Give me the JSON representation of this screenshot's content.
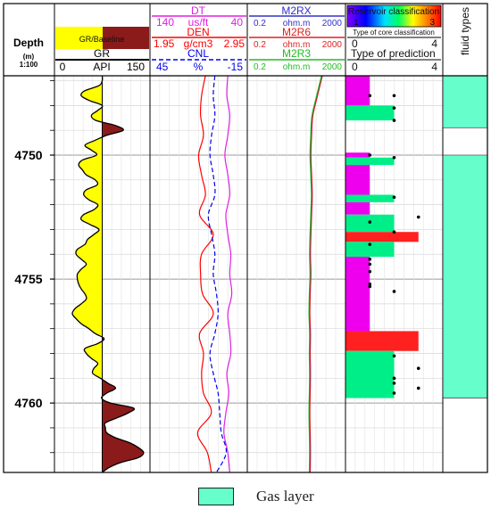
{
  "chart_data": {
    "type": "well_log",
    "depth_track": {
      "label": "Depth",
      "unit": "(m)",
      "scale": "1:100",
      "range": [
        4746.8,
        4762.8
      ],
      "ticks": [
        4750,
        4755,
        4760
      ],
      "tick_labels": [
        "4750",
        "4755",
        "4760"
      ]
    },
    "gr_track": {
      "fill_legend": "GR/Baseline",
      "curve": "GR",
      "unit": "API",
      "min": "0",
      "max": "150",
      "range": [
        0,
        150
      ],
      "baseline": 75,
      "depths": [
        4746.8,
        4747.0,
        4747.2,
        4747.4,
        4747.6,
        4747.8,
        4748.0,
        4748.2,
        4748.4,
        4748.6,
        4748.8,
        4749.0,
        4749.2,
        4749.4,
        4749.6,
        4749.8,
        4750.0,
        4750.2,
        4750.4,
        4750.6,
        4750.8,
        4751.0,
        4751.2,
        4751.4,
        4751.6,
        4751.8,
        4752.0,
        4752.2,
        4752.4,
        4752.6,
        4752.8,
        4753.0,
        4753.2,
        4753.4,
        4753.6,
        4753.8,
        4754.0,
        4754.2,
        4754.4,
        4754.6,
        4754.8,
        4755.0,
        4755.2,
        4755.4,
        4755.6,
        4755.8,
        4756.0,
        4756.2,
        4756.4,
        4756.6,
        4756.8,
        4757.0,
        4757.2,
        4757.4,
        4757.6,
        4757.8,
        4758.0,
        4758.2,
        4758.4,
        4758.6,
        4758.8,
        4759.0,
        4759.2,
        4759.4,
        4759.6,
        4759.8,
        4760.0,
        4760.2,
        4760.4,
        4760.6,
        4760.8,
        4761.0,
        4761.2,
        4761.4,
        4761.6,
        4761.8,
        4762.0,
        4762.2,
        4762.4,
        4762.6,
        4762.8
      ],
      "values": [
        75,
        75,
        70,
        48,
        42,
        55,
        75,
        68,
        58,
        65,
        95,
        108,
        82,
        64,
        48,
        58,
        66,
        44,
        38,
        44,
        50,
        64,
        67,
        50,
        46,
        54,
        68,
        62,
        46,
        42,
        56,
        70,
        62,
        52,
        48,
        36,
        34,
        42,
        50,
        42,
        36,
        36,
        38,
        42,
        48,
        50,
        42,
        32,
        28,
        34,
        42,
        54,
        64,
        78,
        68,
        48,
        50,
        58,
        68,
        62,
        60,
        72,
        84,
        96,
        82,
        74,
        88,
        124,
        116,
        98,
        80,
        80,
        82,
        96,
        118,
        132,
        140,
        132,
        104,
        86,
        75
      ]
    },
    "porosity_track": {
      "curves": [
        {
          "name": "DT",
          "unit": "us/ft",
          "min": "140",
          "max": "40",
          "color": "#e020e0"
        },
        {
          "name": "DEN",
          "unit": "g/cm3",
          "min": "1.95",
          "max": "2.95",
          "color": "#ff0000"
        },
        {
          "name": "CNL",
          "unit": "%",
          "min": "45",
          "max": "-15",
          "color": "#0000ee"
        }
      ],
      "depths": [
        4746.8,
        4747.6,
        4748.4,
        4749.2,
        4750.0,
        4750.8,
        4751.6,
        4752.4,
        4753.2,
        4754.0,
        4754.8,
        4755.6,
        4756.4,
        4757.2,
        4758.0,
        4758.8,
        4759.6,
        4760.4,
        4761.2,
        4762.0,
        4762.8
      ],
      "DT": [
        60,
        61,
        58,
        60,
        63,
        60,
        58,
        62,
        60,
        57,
        58,
        56,
        60,
        58,
        57,
        61,
        59,
        62,
        64,
        60,
        58
      ],
      "DEN": [
        2.52,
        2.48,
        2.47,
        2.5,
        2.45,
        2.48,
        2.52,
        2.46,
        2.6,
        2.48,
        2.47,
        2.49,
        2.6,
        2.46,
        2.5,
        2.48,
        2.5,
        2.58,
        2.44,
        2.54,
        2.58
      ],
      "CNL": [
        5,
        6,
        5,
        7,
        8,
        6,
        5,
        9,
        7,
        5,
        6,
        4,
        3,
        5,
        8,
        6,
        3,
        2,
        1,
        -2,
        4
      ]
    },
    "resistivity_track": {
      "curves": [
        {
          "name": "M2RX",
          "unit": "ohm.m",
          "min": "0.2",
          "max": "2000",
          "color": "#3030cc"
        },
        {
          "name": "M2R6",
          "unit": "ohm.m",
          "min": "0.2",
          "max": "2000",
          "color": "#dd2020"
        },
        {
          "name": "M2R3",
          "unit": "ohm.m",
          "min": "0.2",
          "max": "2000",
          "color": "#22bb22"
        }
      ],
      "scale": "log",
      "range": [
        0.2,
        2000
      ],
      "depths": [
        4746.8,
        4747.6,
        4748.4,
        4749.2,
        4750.0,
        4750.8,
        4751.6,
        4752.4,
        4753.2,
        4754.0,
        4754.8,
        4755.6,
        4756.4,
        4757.2,
        4758.0,
        4758.8,
        4759.6,
        4760.4,
        4761.2,
        4762.0,
        4762.8
      ],
      "values": [
        220,
        140,
        90,
        80,
        75,
        80,
        85,
        80,
        75,
        72,
        75,
        70,
        68,
        72,
        70,
        72,
        70,
        68,
        70,
        72,
        70
      ]
    },
    "classification_track": {
      "title": "Reservoir classification",
      "color_scale_min": "1",
      "color_scale_max": "3",
      "core_title": "Type of core classification",
      "core_min": "0",
      "core_max": "4",
      "prediction_title": "Type of prediction",
      "prediction_min": "0",
      "prediction_max": "4",
      "range": [
        0,
        4
      ],
      "classes": {
        "1": "#ff2020",
        "2": "#00ee88",
        "3": "#ee00ee"
      },
      "intervals": [
        {
          "top": 4746.8,
          "bottom": 4748.0,
          "value": 1,
          "class": 3
        },
        {
          "top": 4748.0,
          "bottom": 4748.6,
          "value": 2,
          "class": 2
        },
        {
          "top": 4749.9,
          "bottom": 4750.1,
          "value": 1,
          "class": 3
        },
        {
          "top": 4750.1,
          "bottom": 4750.4,
          "value": 2,
          "class": 2
        },
        {
          "top": 4750.4,
          "bottom": 4751.6,
          "value": 1,
          "class": 3
        },
        {
          "top": 4751.6,
          "bottom": 4751.9,
          "value": 2,
          "class": 2
        },
        {
          "top": 4751.9,
          "bottom": 4752.4,
          "value": 1,
          "class": 3
        },
        {
          "top": 4752.4,
          "bottom": 4753.1,
          "value": 2,
          "class": 2
        },
        {
          "top": 4753.1,
          "bottom": 4753.5,
          "value": 3,
          "class": 1
        },
        {
          "top": 4753.5,
          "bottom": 4754.1,
          "value": 2,
          "class": 2
        },
        {
          "top": 4754.1,
          "bottom": 4757.1,
          "value": 1,
          "class": 3
        },
        {
          "top": 4757.1,
          "bottom": 4757.9,
          "value": 3,
          "class": 1
        },
        {
          "top": 4757.9,
          "bottom": 4759.8,
          "value": 2,
          "class": 2
        }
      ],
      "core_points": [
        {
          "depth": 4747.6,
          "value": 1
        },
        {
          "depth": 4747.6,
          "value": 2
        },
        {
          "depth": 4748.1,
          "value": 2
        },
        {
          "depth": 4748.6,
          "value": 2
        },
        {
          "depth": 4750.0,
          "value": 1
        },
        {
          "depth": 4750.1,
          "value": 2
        },
        {
          "depth": 4751.7,
          "value": 2
        },
        {
          "depth": 4752.5,
          "value": 3
        },
        {
          "depth": 4752.7,
          "value": 1
        },
        {
          "depth": 4753.1,
          "value": 2
        },
        {
          "depth": 4753.6,
          "value": 1
        },
        {
          "depth": 4754.2,
          "value": 1
        },
        {
          "depth": 4754.4,
          "value": 1
        },
        {
          "depth": 4754.7,
          "value": 1
        },
        {
          "depth": 4755.2,
          "value": 1
        },
        {
          "depth": 4755.3,
          "value": 1
        },
        {
          "depth": 4755.5,
          "value": 2
        },
        {
          "depth": 4758.1,
          "value": 2
        },
        {
          "depth": 4758.6,
          "value": 3
        },
        {
          "depth": 4759.0,
          "value": 2
        },
        {
          "depth": 4759.2,
          "value": 2
        },
        {
          "depth": 4759.4,
          "value": 3
        },
        {
          "depth": 4759.6,
          "value": 2
        }
      ]
    },
    "fluid_track": {
      "title": "fluid types",
      "intervals": [
        {
          "top": 4746.8,
          "bottom": 4748.9,
          "type": "Gas layer"
        },
        {
          "top": 4750.0,
          "bottom": 4759.8,
          "type": "Gas layer"
        }
      ]
    },
    "legend": [
      {
        "label": "Gas layer",
        "color": "#66ffcc"
      }
    ]
  }
}
